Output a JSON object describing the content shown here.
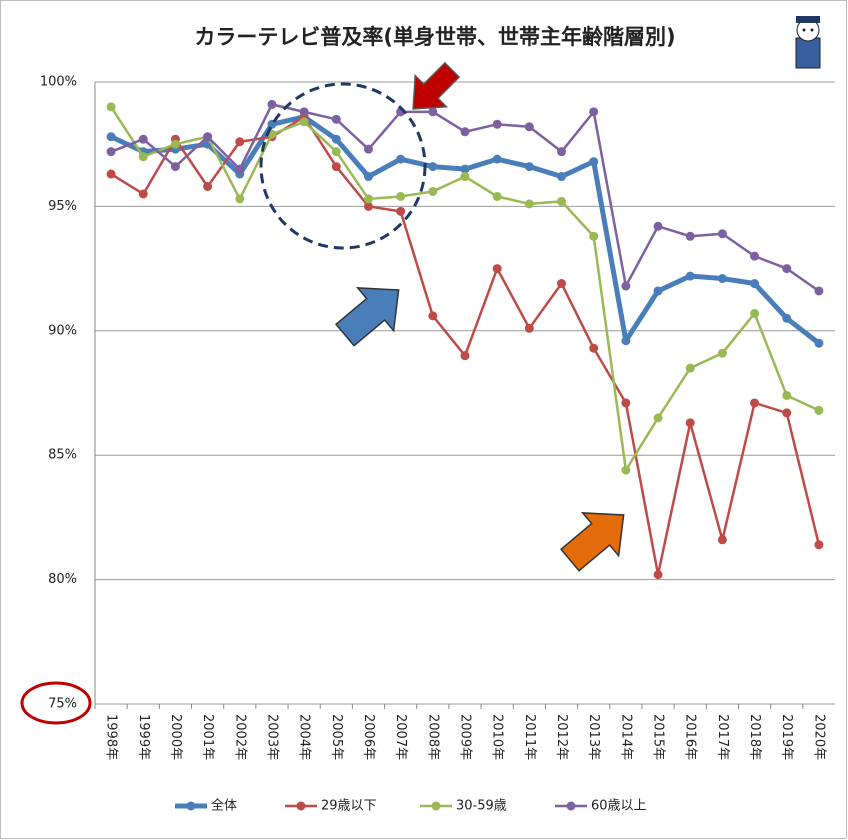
{
  "chart_data": {
    "type": "line",
    "title": "カラーテレビ普及率(単身世帯、世帯主年齢階層別)",
    "categories": [
      "1998年",
      "1999年",
      "2000年",
      "2001年",
      "2002年",
      "2003年",
      "2004年",
      "2005年",
      "2006年",
      "2007年",
      "2008年",
      "2009年",
      "2010年",
      "2011年",
      "2012年",
      "2013年",
      "2014年",
      "2015年",
      "2016年",
      "2017年",
      "2018年",
      "2019年",
      "2020年"
    ],
    "series": [
      {
        "name": "全体",
        "color": "#4a7ebb",
        "values": [
          97.8,
          97.2,
          97.3,
          97.5,
          96.3,
          98.3,
          98.6,
          97.7,
          96.2,
          96.9,
          96.6,
          96.5,
          96.9,
          96.6,
          96.2,
          96.8,
          89.6,
          91.6,
          92.2,
          92.1,
          91.9,
          90.5,
          89.5
        ]
      },
      {
        "name": "29歳以下",
        "color": "#be4b48",
        "values": [
          96.3,
          95.5,
          97.7,
          95.8,
          97.6,
          97.8,
          98.6,
          96.6,
          95.0,
          94.8,
          90.6,
          89.0,
          92.5,
          90.1,
          91.9,
          89.3,
          87.1,
          80.2,
          86.3,
          81.6,
          87.1,
          86.7,
          81.4
        ]
      },
      {
        "name": "30-59歳",
        "color": "#98b954",
        "values": [
          99.0,
          97.0,
          97.5,
          97.8,
          95.3,
          97.9,
          98.4,
          97.2,
          95.3,
          95.4,
          95.6,
          96.2,
          95.4,
          95.1,
          95.2,
          93.8,
          84.4,
          86.5,
          88.5,
          89.1,
          90.7,
          87.4,
          86.8
        ]
      },
      {
        "name": "60歳以上",
        "color": "#7d60a0",
        "values": [
          97.2,
          97.7,
          96.6,
          97.8,
          96.5,
          99.1,
          98.8,
          98.5,
          97.3,
          98.8,
          98.8,
          98.0,
          98.3,
          98.2,
          97.2,
          98.8,
          91.8,
          94.2,
          93.8,
          93.9,
          93.0,
          92.5,
          91.6
        ]
      }
    ],
    "ylim": [
      75,
      100
    ],
    "yticks": [
      {
        "value": 75,
        "label": "75%"
      },
      {
        "value": 80,
        "label": "80%"
      },
      {
        "value": 85,
        "label": "85%"
      },
      {
        "value": 90,
        "label": "90%"
      },
      {
        "value": 95,
        "label": "95%"
      },
      {
        "value": 100,
        "label": "100%"
      }
    ],
    "grid": true
  }
}
